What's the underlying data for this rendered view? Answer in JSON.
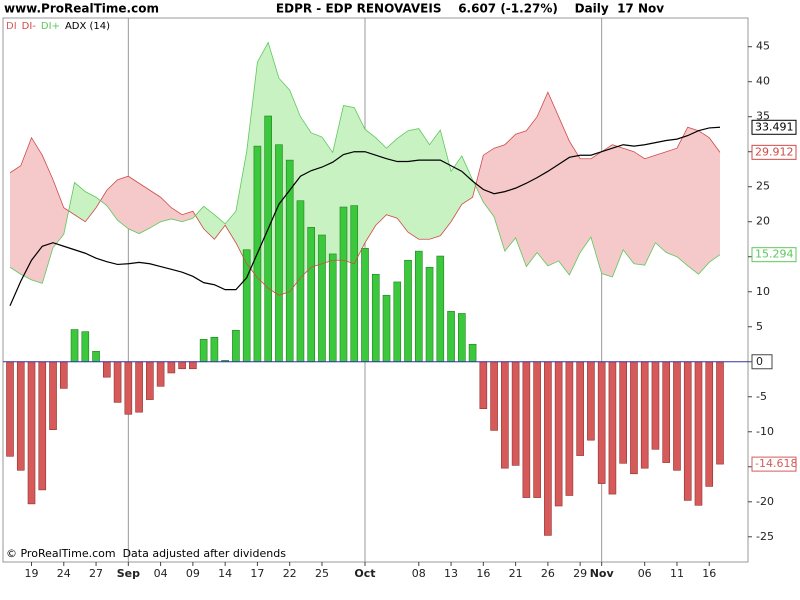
{
  "chart_data": {
    "type": "bar",
    "site": "www.ProRealTime.com",
    "title": "EDPR - EDP RENOVAVEIS    6.607 (-1.27%)    Daily  17 Nov",
    "footer": "© ProRealTime.com  Data adjusted after dividends",
    "categories": [
      null,
      null,
      "19",
      null,
      null,
      "24",
      null,
      null,
      "27",
      null,
      null,
      "Sep",
      null,
      null,
      "04",
      null,
      null,
      "09",
      null,
      null,
      "14",
      null,
      null,
      "17",
      null,
      null,
      "22",
      null,
      null,
      "25",
      null,
      null,
      null,
      "Oct",
      null,
      null,
      null,
      null,
      "08",
      null,
      null,
      "13",
      null,
      null,
      "16",
      null,
      null,
      "21",
      null,
      null,
      "26",
      null,
      null,
      "29",
      null,
      "Nov",
      null,
      null,
      null,
      "06",
      null,
      null,
      "11",
      null,
      null,
      "16",
      null
    ],
    "series": [
      {
        "name": "DI",
        "type": "bar",
        "color": "#d65a5a",
        "positive_color": "#3cc83c",
        "values": [
          -13.5,
          -15.5,
          -20.3,
          -18.3,
          -9.7,
          -3.8,
          4.6,
          4.3,
          1.5,
          -2.2,
          -5.8,
          -7.5,
          -7.2,
          -5.4,
          -3.5,
          -1.6,
          -1.0,
          -1.0,
          3.2,
          3.5,
          0.2,
          4.5,
          16,
          30.8,
          35.1,
          31,
          28.8,
          23,
          19.2,
          18.1,
          15.4,
          22.1,
          22.3,
          16.2,
          12.5,
          9.5,
          11.4,
          14.5,
          15.8,
          13.5,
          15.1,
          7.2,
          6.9,
          2.5,
          -6.7,
          -9.8,
          -15.2,
          -14.8,
          -19.4,
          -19.4,
          -24.8,
          -20.6,
          -19.1,
          -13.4,
          -11.2,
          -17.4,
          -18.9,
          -14.5,
          -16,
          -15.2,
          -12.5,
          -14.4,
          -15.5,
          -19.8,
          -20.5,
          -17.8,
          -14.618
        ]
      },
      {
        "name": "DI-",
        "type": "line",
        "color": "#d04a4a",
        "fill": "#f5c9c9",
        "values": [
          27,
          28,
          32,
          29.5,
          26,
          22,
          21,
          20,
          22,
          24.5,
          26,
          26.5,
          25.5,
          24.5,
          23.5,
          22,
          21,
          21.5,
          19,
          17.5,
          19.5,
          17,
          14,
          12,
          10.5,
          9.5,
          10,
          12,
          13.5,
          14,
          14.5,
          14.5,
          14,
          17,
          19.5,
          21,
          20.5,
          18.5,
          17.5,
          17.5,
          18,
          20,
          22.5,
          23.5,
          29.5,
          30.5,
          31,
          32.5,
          33,
          35,
          38.5,
          35,
          31.5,
          29,
          29,
          30,
          31,
          30.5,
          30,
          29,
          29.5,
          30,
          30.5,
          33.5,
          33,
          32,
          29.912
        ]
      },
      {
        "name": "DI+",
        "type": "line",
        "color": "#5cc85c",
        "fill": "#c9f2c3",
        "values": [
          13.5,
          12.5,
          11.7,
          11.2,
          16.3,
          18.2,
          25.6,
          24.3,
          23.5,
          22.3,
          20.2,
          19,
          18.3,
          19.1,
          20,
          20.4,
          20,
          20.5,
          22.2,
          21,
          19.7,
          21.5,
          30,
          42.8,
          45.6,
          40.5,
          38.8,
          35,
          32.7,
          32.1,
          29.9,
          36.6,
          36.3,
          33.2,
          32,
          30.5,
          31.9,
          33,
          33.3,
          31,
          33.1,
          27.2,
          29.4,
          26,
          22.8,
          20.7,
          15.8,
          17.7,
          13.6,
          15.6,
          13.7,
          14.4,
          12.4,
          15.6,
          17.8,
          12.6,
          12.1,
          16,
          14,
          13.8,
          17,
          15.6,
          15,
          13.7,
          12.5,
          14.2,
          15.294
        ]
      },
      {
        "name": "ADX (14)",
        "type": "line",
        "color": "#000000",
        "values": [
          8,
          11.5,
          14.5,
          16.5,
          17,
          16.5,
          16,
          15.5,
          14.8,
          14.3,
          13.9,
          14,
          14.2,
          14,
          13.6,
          13.2,
          12.8,
          12.2,
          11.3,
          11,
          10.3,
          10.3,
          12,
          15.5,
          19,
          22.5,
          24.5,
          26.5,
          27.3,
          27.8,
          28.5,
          29.6,
          30,
          30,
          29.5,
          29,
          28.6,
          28.6,
          28.8,
          28.8,
          28.8,
          28,
          27.2,
          25.8,
          24.6,
          24,
          24.3,
          24.8,
          25.5,
          26.3,
          27.2,
          28.2,
          29.2,
          29.5,
          29.5,
          30,
          30.5,
          31,
          30.8,
          31,
          31.3,
          31.6,
          31.8,
          32.3,
          33,
          33.4,
          33.491
        ]
      }
    ],
    "ylim": [
      -28.6,
      49.1
    ],
    "yticks": [
      -25,
      -20,
      -15,
      -10,
      -5,
      0,
      5,
      10,
      15,
      20,
      25,
      30,
      35,
      40,
      45
    ],
    "zero_line_color": "#3333aa"
  }
}
